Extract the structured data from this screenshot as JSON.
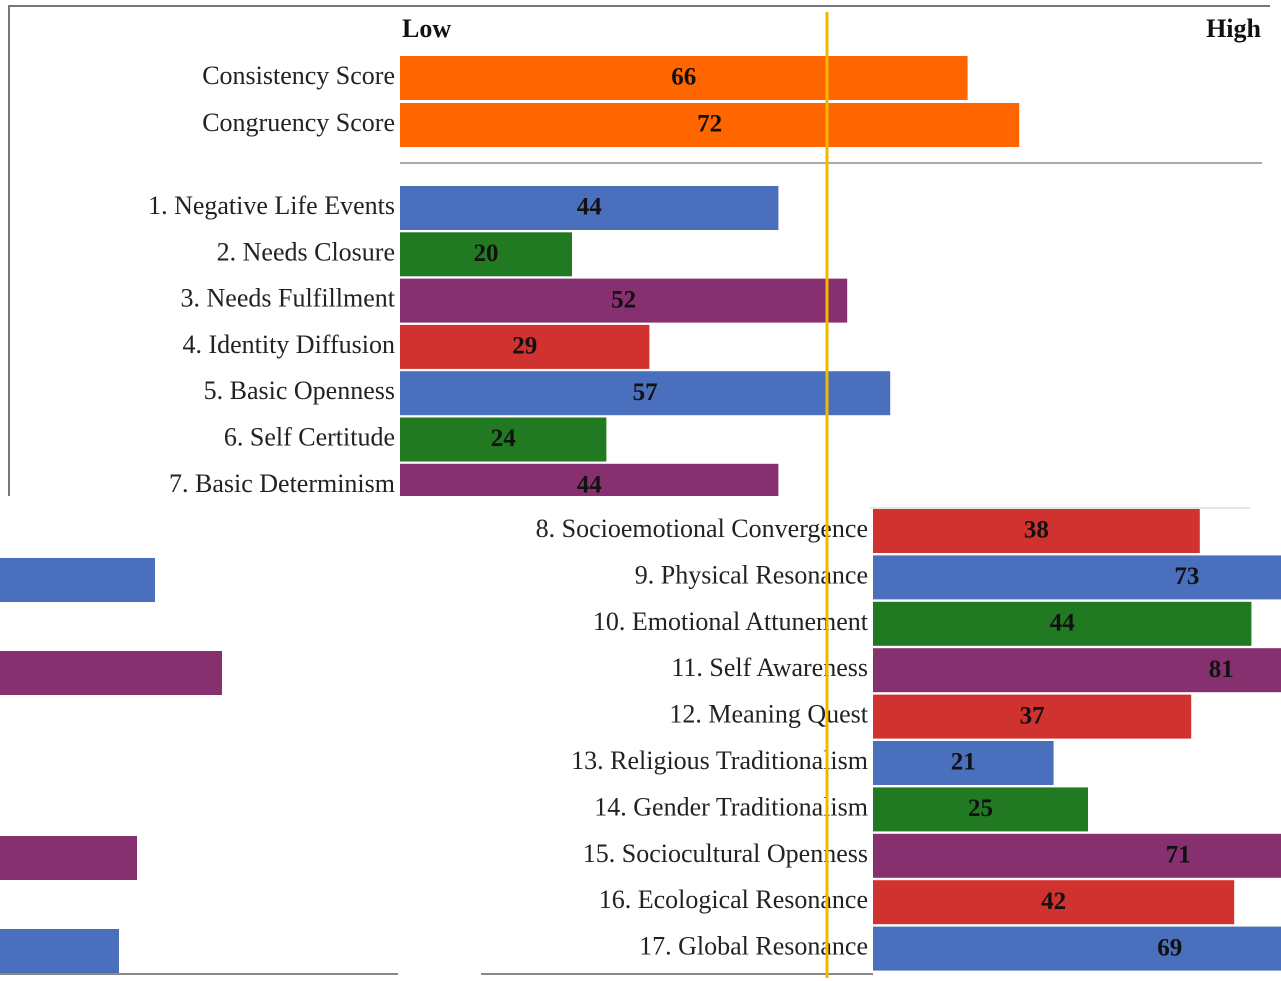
{
  "header": {
    "low": "Low",
    "high": "High"
  },
  "xlim": [
    0,
    100
  ],
  "scores": {
    "categories": [
      "Consistency Score",
      "Congruency Score"
    ],
    "values": [
      66,
      72
    ],
    "color": "#ff6600"
  },
  "scales": {
    "categories": [
      "1. Negative Life Events",
      "2. Needs Closure",
      "3. Needs Fulfillment",
      "4. Identity Diffusion",
      "5. Basic Openness",
      "6. Self Certitude",
      "7. Basic Determinism",
      "8. Socioemotional Convergence",
      "9. Physical Resonance",
      "10. Emotional Attunement",
      "11. Self Awareness",
      "12. Meaning Quest",
      "13. Religious Traditionalism",
      "14. Gender Traditionalism",
      "15. Sociocultural Openness",
      "16. Ecological Resonance",
      "17. Global Resonance"
    ],
    "values": [
      44,
      20,
      52,
      29,
      57,
      24,
      44,
      38,
      73,
      44,
      81,
      37,
      21,
      25,
      71,
      42,
      69
    ],
    "colors": [
      "#4a6fbd",
      "#217a21",
      "#87306f",
      "#d0322f",
      "#4a6fbd",
      "#217a21",
      "#87306f",
      "#d0322f",
      "#4a6fbd",
      "#217a21",
      "#87306f",
      "#d0322f",
      "#4a6fbd",
      "#217a21",
      "#87306f",
      "#d0322f",
      "#4a6fbd"
    ]
  }
}
